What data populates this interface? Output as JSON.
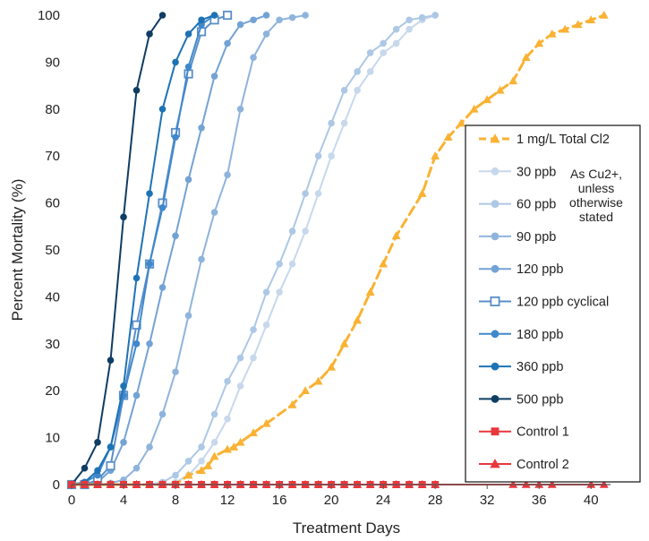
{
  "chart_data": {
    "type": "line",
    "title": "",
    "xlabel": "Treatment Days",
    "ylabel": "Percent Mortality (%)",
    "xlim": [
      0,
      41.5
    ],
    "ylim": [
      0,
      100
    ],
    "xticks": [
      0,
      4,
      8,
      12,
      16,
      20,
      24,
      28,
      32,
      36,
      40
    ],
    "yticks": [
      0,
      10,
      20,
      30,
      40,
      50,
      60,
      70,
      80,
      90,
      100
    ],
    "grid": false,
    "legend_position": "right",
    "legend_note": [
      "As Cu2+,",
      "unless",
      "otherwise",
      "stated"
    ],
    "series": [
      {
        "name": "1 mg/L Total Cl2",
        "color": "#f9b233",
        "dashed": true,
        "marker": "triangle",
        "hollow": false,
        "points": [
          [
            0,
            0
          ],
          [
            1,
            0
          ],
          [
            2,
            0
          ],
          [
            3,
            0
          ],
          [
            4,
            0
          ],
          [
            5,
            0
          ],
          [
            6,
            0
          ],
          [
            7,
            0
          ],
          [
            8,
            0
          ],
          [
            9,
            2
          ],
          [
            10,
            3
          ],
          [
            10.5,
            4
          ],
          [
            11,
            6
          ],
          [
            12,
            7.5
          ],
          [
            12.5,
            8
          ],
          [
            13,
            9
          ],
          [
            14,
            11
          ],
          [
            15,
            13
          ],
          [
            17,
            17
          ],
          [
            18,
            20
          ],
          [
            19,
            22
          ],
          [
            20,
            25
          ],
          [
            21,
            30
          ],
          [
            22,
            35
          ],
          [
            23,
            41
          ],
          [
            24,
            47
          ],
          [
            25,
            53
          ],
          [
            27,
            62
          ],
          [
            28,
            70
          ],
          [
            29,
            74
          ],
          [
            30,
            77
          ],
          [
            31,
            80
          ],
          [
            32,
            82
          ],
          [
            33,
            84
          ],
          [
            34,
            86
          ],
          [
            35,
            91
          ],
          [
            36,
            94
          ],
          [
            37,
            96
          ],
          [
            38,
            97
          ],
          [
            39,
            98
          ],
          [
            40,
            99
          ],
          [
            41,
            100
          ]
        ]
      },
      {
        "name": "30 ppb",
        "color": "#c7d8ec",
        "dashed": false,
        "marker": "circle",
        "hollow": false,
        "points": [
          [
            0,
            0
          ],
          [
            1,
            0
          ],
          [
            2,
            0
          ],
          [
            3,
            0
          ],
          [
            4,
            0
          ],
          [
            5,
            0
          ],
          [
            6,
            0
          ],
          [
            7,
            0
          ],
          [
            8,
            0.5
          ],
          [
            9,
            2
          ],
          [
            10,
            5
          ],
          [
            11,
            9
          ],
          [
            12,
            14
          ],
          [
            13,
            21
          ],
          [
            14,
            27
          ],
          [
            15,
            34
          ],
          [
            16,
            41
          ],
          [
            17,
            47
          ],
          [
            18,
            54
          ],
          [
            19,
            62
          ],
          [
            20,
            70
          ],
          [
            21,
            77
          ],
          [
            22,
            84
          ],
          [
            23,
            88
          ],
          [
            24,
            92
          ],
          [
            25,
            94
          ],
          [
            26,
            97
          ],
          [
            27,
            99
          ],
          [
            28,
            100
          ]
        ]
      },
      {
        "name": "60 ppb",
        "color": "#adc8e5",
        "dashed": false,
        "marker": "circle",
        "hollow": false,
        "points": [
          [
            0,
            0
          ],
          [
            1,
            0
          ],
          [
            2,
            0
          ],
          [
            3,
            0
          ],
          [
            4,
            0
          ],
          [
            5,
            0
          ],
          [
            6,
            0
          ],
          [
            7,
            0.5
          ],
          [
            8,
            2
          ],
          [
            9,
            5
          ],
          [
            10,
            8
          ],
          [
            11,
            15
          ],
          [
            12,
            22
          ],
          [
            13,
            27
          ],
          [
            14,
            33
          ],
          [
            15,
            41
          ],
          [
            16,
            47
          ],
          [
            17,
            54
          ],
          [
            18,
            62
          ],
          [
            19,
            70
          ],
          [
            20,
            77
          ],
          [
            21,
            84
          ],
          [
            22,
            88
          ],
          [
            23,
            92
          ],
          [
            24,
            94
          ],
          [
            25,
            97
          ],
          [
            26,
            99
          ],
          [
            27,
            99.5
          ],
          [
            28,
            100
          ]
        ]
      },
      {
        "name": "90 ppb",
        "color": "#8fb4dc",
        "dashed": false,
        "marker": "circle",
        "hollow": false,
        "points": [
          [
            0,
            0
          ],
          [
            1,
            0
          ],
          [
            2,
            0
          ],
          [
            3,
            0.3
          ],
          [
            4,
            1
          ],
          [
            5,
            3.5
          ],
          [
            6,
            8
          ],
          [
            7,
            15
          ],
          [
            8,
            24
          ],
          [
            9,
            36
          ],
          [
            10,
            48
          ],
          [
            11,
            58
          ],
          [
            12,
            66
          ],
          [
            13,
            80
          ],
          [
            14,
            91
          ],
          [
            15,
            96
          ],
          [
            16,
            99
          ],
          [
            17,
            99.5
          ],
          [
            18,
            100
          ]
        ]
      },
      {
        "name": "120 ppb",
        "color": "#73a3d4",
        "dashed": false,
        "marker": "circle",
        "hollow": false,
        "points": [
          [
            0,
            0
          ],
          [
            1,
            0
          ],
          [
            2,
            0.5
          ],
          [
            3,
            3
          ],
          [
            4,
            9
          ],
          [
            5,
            19
          ],
          [
            6,
            30
          ],
          [
            7,
            42
          ],
          [
            8,
            53
          ],
          [
            9,
            65
          ],
          [
            10,
            76
          ],
          [
            11,
            87
          ],
          [
            12,
            94
          ],
          [
            13,
            98
          ],
          [
            14,
            99
          ],
          [
            15,
            100
          ]
        ]
      },
      {
        "name": "120 ppb cyclical",
        "color": "#5a8fc8",
        "dashed": false,
        "marker": "square",
        "hollow": true,
        "points": [
          [
            0,
            0
          ],
          [
            1,
            0
          ],
          [
            2,
            1
          ],
          [
            3,
            4
          ],
          [
            4,
            19
          ],
          [
            5,
            34
          ],
          [
            6,
            47
          ],
          [
            7,
            60
          ],
          [
            8,
            75
          ],
          [
            9,
            87.5
          ],
          [
            10,
            96.5
          ],
          [
            11,
            99
          ],
          [
            12,
            100
          ]
        ]
      },
      {
        "name": "180 ppb",
        "color": "#3f88cc",
        "dashed": false,
        "marker": "circle",
        "hollow": false,
        "points": [
          [
            0,
            0
          ],
          [
            1,
            0.5
          ],
          [
            2,
            2
          ],
          [
            3,
            8
          ],
          [
            4,
            19
          ],
          [
            5,
            30
          ],
          [
            6,
            47
          ],
          [
            7,
            59
          ],
          [
            8,
            74
          ],
          [
            9,
            89
          ],
          [
            10,
            98
          ],
          [
            11,
            100
          ]
        ]
      },
      {
        "name": "360 ppb",
        "color": "#1e73b5",
        "dashed": false,
        "marker": "circle",
        "hollow": false,
        "points": [
          [
            0,
            0
          ],
          [
            1,
            0.5
          ],
          [
            2,
            3
          ],
          [
            3,
            8
          ],
          [
            4,
            21
          ],
          [
            5,
            44
          ],
          [
            6,
            62
          ],
          [
            7,
            80
          ],
          [
            8,
            90
          ],
          [
            9,
            96
          ],
          [
            10,
            99
          ],
          [
            11,
            100
          ]
        ]
      },
      {
        "name": "500 ppb",
        "color": "#0f3d63",
        "dashed": false,
        "marker": "circle",
        "hollow": false,
        "points": [
          [
            0,
            0
          ],
          [
            1,
            3.5
          ],
          [
            2,
            9
          ],
          [
            3,
            26.5
          ],
          [
            4,
            57
          ],
          [
            5,
            84
          ],
          [
            6,
            96
          ],
          [
            7,
            100
          ]
        ]
      },
      {
        "name": "Control 1",
        "color": "#e8373d",
        "dashed": false,
        "marker": "square",
        "hollow": false,
        "points": [
          [
            0,
            0
          ],
          [
            1,
            0
          ],
          [
            2,
            0
          ],
          [
            3,
            0
          ],
          [
            4,
            0
          ],
          [
            5,
            0
          ],
          [
            6,
            0
          ],
          [
            7,
            0
          ],
          [
            8,
            0
          ],
          [
            9,
            0
          ],
          [
            10,
            0
          ],
          [
            11,
            0
          ],
          [
            12,
            0
          ],
          [
            13,
            0
          ],
          [
            14,
            0
          ],
          [
            15,
            0
          ],
          [
            16,
            0
          ],
          [
            17,
            0
          ],
          [
            18,
            0
          ],
          [
            19,
            0
          ],
          [
            20,
            0
          ],
          [
            21,
            0
          ],
          [
            22,
            0
          ],
          [
            23,
            0
          ],
          [
            24,
            0
          ],
          [
            25,
            0
          ],
          [
            26,
            0
          ],
          [
            27,
            0
          ],
          [
            28,
            0
          ]
        ]
      },
      {
        "name": "Control 2",
        "color": "#e8373d",
        "dashed": false,
        "marker": "triangle",
        "hollow": false,
        "points": [
          [
            0,
            0
          ],
          [
            1,
            0
          ],
          [
            2,
            0
          ],
          [
            3,
            0
          ],
          [
            4,
            0
          ],
          [
            5,
            0
          ],
          [
            6,
            0
          ],
          [
            7,
            0
          ],
          [
            8,
            0
          ],
          [
            9,
            0
          ],
          [
            10,
            0
          ],
          [
            11,
            0
          ],
          [
            12,
            0
          ],
          [
            13,
            0
          ],
          [
            14,
            0
          ],
          [
            15,
            0
          ],
          [
            16,
            0
          ],
          [
            17,
            0
          ],
          [
            18,
            0
          ],
          [
            19,
            0
          ],
          [
            20,
            0
          ],
          [
            21,
            0
          ],
          [
            22,
            0
          ],
          [
            23,
            0
          ],
          [
            24,
            0
          ],
          [
            25,
            0
          ],
          [
            26,
            0
          ],
          [
            27,
            0
          ],
          [
            28,
            0
          ],
          [
            34,
            0
          ],
          [
            35,
            0
          ],
          [
            36,
            0
          ],
          [
            37,
            0
          ],
          [
            40,
            0
          ],
          [
            41,
            0
          ]
        ]
      }
    ]
  }
}
